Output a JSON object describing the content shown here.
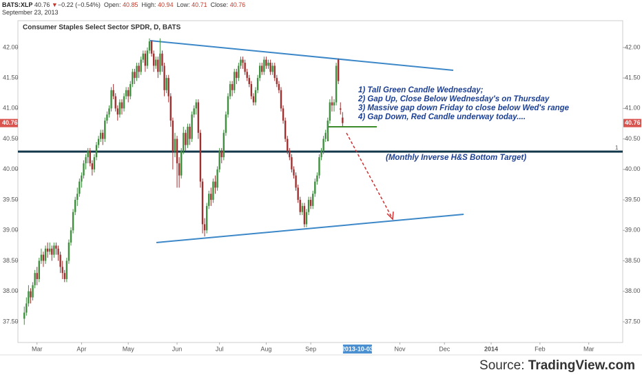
{
  "header": {
    "symbol": "BATS:XLP",
    "change": "−0.22",
    "change_pct": "(−0.54%)",
    "open_label": "Open:",
    "high_label": "High:",
    "low_label": "Low:",
    "close_label": "Close:",
    "date": "September 23, 2013"
  },
  "chart_data": {
    "type": "candlestick",
    "title": "Consumer Staples Select Sector SPDR, D, BATS",
    "up_color": "#3f8f3f",
    "down_color": "#a03030",
    "ylim": [
      37.16,
      42.44
    ],
    "yticks": [
      {
        "value": 37.5,
        "label": "37.50"
      },
      {
        "value": 38,
        "label": "38.00"
      },
      {
        "value": 38.5,
        "label": "38.50"
      },
      {
        "value": 39,
        "label": "39.00"
      },
      {
        "value": 39.5,
        "label": "39.50"
      },
      {
        "value": 40,
        "label": "40.00"
      },
      {
        "value": 40.5,
        "label": "40.50"
      },
      {
        "value": 41,
        "label": "41.00"
      },
      {
        "value": 41.5,
        "label": "41.50"
      },
      {
        "value": 42,
        "label": "42.00"
      }
    ],
    "xlim": [
      -3,
      282
    ],
    "xticks": [
      {
        "value": 6,
        "label": "Mar"
      },
      {
        "value": 27,
        "label": "Apr"
      },
      {
        "value": 49,
        "label": "May"
      },
      {
        "value": 72,
        "label": "Jun"
      },
      {
        "value": 92,
        "label": "Jul"
      },
      {
        "value": 114,
        "label": "Aug"
      },
      {
        "value": 135,
        "label": "Sep"
      },
      {
        "value": 177,
        "label": "Nov"
      },
      {
        "value": 198,
        "label": "Dec"
      },
      {
        "value": 220,
        "label": "2014"
      },
      {
        "value": 243,
        "label": "Feb"
      },
      {
        "value": 266,
        "label": "Mar"
      }
    ],
    "xcursor": {
      "value": 157,
      "label": "2013-10-03"
    },
    "ohlc": [
      [
        37.55,
        37.75,
        37.45,
        37.65
      ],
      [
        37.65,
        37.9,
        37.6,
        37.8
      ],
      [
        37.8,
        38.1,
        37.75,
        38.0
      ],
      [
        38.0,
        38.05,
        37.8,
        37.9
      ],
      [
        37.9,
        38.15,
        37.85,
        38.1
      ],
      [
        38.1,
        38.35,
        38.05,
        38.3
      ],
      [
        38.3,
        38.4,
        38.1,
        38.2
      ],
      [
        38.2,
        38.55,
        38.15,
        38.5
      ],
      [
        38.5,
        38.7,
        38.45,
        38.6
      ],
      [
        38.6,
        38.65,
        38.4,
        38.5
      ],
      [
        38.5,
        38.75,
        38.45,
        38.7
      ],
      [
        38.7,
        38.8,
        38.55,
        38.65
      ],
      [
        38.65,
        38.8,
        38.6,
        38.7
      ],
      [
        38.7,
        38.75,
        38.5,
        38.6
      ],
      [
        38.6,
        38.8,
        38.55,
        38.75
      ],
      [
        38.75,
        38.8,
        38.6,
        38.7
      ],
      [
        38.7,
        38.75,
        38.5,
        38.6
      ],
      [
        38.6,
        38.65,
        38.3,
        38.4
      ],
      [
        38.4,
        38.5,
        38.2,
        38.3
      ],
      [
        38.3,
        38.35,
        38.15,
        38.2
      ],
      [
        38.2,
        38.55,
        38.15,
        38.5
      ],
      [
        38.5,
        38.85,
        38.45,
        38.8
      ],
      [
        38.8,
        39.05,
        38.75,
        39.0
      ],
      [
        39.0,
        39.35,
        38.95,
        39.3
      ],
      [
        39.3,
        39.55,
        39.25,
        39.5
      ],
      [
        39.5,
        39.7,
        39.4,
        39.6
      ],
      [
        39.6,
        39.85,
        39.55,
        39.8
      ],
      [
        39.8,
        39.95,
        39.7,
        39.9
      ],
      [
        39.9,
        40.15,
        39.85,
        40.1
      ],
      [
        40.1,
        40.25,
        40.0,
        40.2
      ],
      [
        40.2,
        40.35,
        40.1,
        40.3
      ],
      [
        40.3,
        40.35,
        40.05,
        40.1
      ],
      [
        40.1,
        40.15,
        39.9,
        40.0
      ],
      [
        40.0,
        40.25,
        39.95,
        40.2
      ],
      [
        40.2,
        40.45,
        40.15,
        40.4
      ],
      [
        40.4,
        40.55,
        40.35,
        40.5
      ],
      [
        40.5,
        40.65,
        40.45,
        40.6
      ],
      [
        40.6,
        40.65,
        40.4,
        40.5
      ],
      [
        40.5,
        40.85,
        40.45,
        40.8
      ],
      [
        40.8,
        40.95,
        40.75,
        40.9
      ],
      [
        40.9,
        41.05,
        40.85,
        41.0
      ],
      [
        41.0,
        41.35,
        40.95,
        41.3
      ],
      [
        41.3,
        41.4,
        41.15,
        41.2
      ],
      [
        41.2,
        41.25,
        40.95,
        41.0
      ],
      [
        41.0,
        41.05,
        40.8,
        40.9
      ],
      [
        40.9,
        41.15,
        40.85,
        41.1
      ],
      [
        41.1,
        41.15,
        40.9,
        41.0
      ],
      [
        41.0,
        41.25,
        40.95,
        41.2
      ],
      [
        41.2,
        41.35,
        41.15,
        41.3
      ],
      [
        41.3,
        41.35,
        41.1,
        41.2
      ],
      [
        41.2,
        41.45,
        41.15,
        41.4
      ],
      [
        41.4,
        41.65,
        41.35,
        41.6
      ],
      [
        41.6,
        41.65,
        41.4,
        41.5
      ],
      [
        41.5,
        41.75,
        41.45,
        41.7
      ],
      [
        41.7,
        41.75,
        41.5,
        41.6
      ],
      [
        41.6,
        41.85,
        41.55,
        41.8
      ],
      [
        41.8,
        41.95,
        41.75,
        41.9
      ],
      [
        41.9,
        41.95,
        41.6,
        41.7
      ],
      [
        41.7,
        42.0,
        41.65,
        41.95
      ],
      [
        41.95,
        42.15,
        41.9,
        42.1
      ],
      [
        42.1,
        42.12,
        41.85,
        41.9
      ],
      [
        41.9,
        41.95,
        41.6,
        41.7
      ],
      [
        41.7,
        41.85,
        41.65,
        41.8
      ],
      [
        41.8,
        41.85,
        41.5,
        41.6
      ],
      [
        41.6,
        42.15,
        41.55,
        41.9
      ],
      [
        41.9,
        41.95,
        41.6,
        41.7
      ],
      [
        41.7,
        41.75,
        41.2,
        41.3
      ],
      [
        41.3,
        41.55,
        41.25,
        41.5
      ],
      [
        41.5,
        41.55,
        41.1,
        41.2
      ],
      [
        41.2,
        41.25,
        40.7,
        40.8
      ],
      [
        40.8,
        40.85,
        40.0,
        40.3
      ],
      [
        40.3,
        40.6,
        40.2,
        40.5
      ],
      [
        40.5,
        40.55,
        39.7,
        40.1
      ],
      [
        40.1,
        40.2,
        39.7,
        39.9
      ],
      [
        39.9,
        40.35,
        39.85,
        40.3
      ],
      [
        40.3,
        40.7,
        40.25,
        40.6
      ],
      [
        40.6,
        40.65,
        40.3,
        40.4
      ],
      [
        40.4,
        40.75,
        40.35,
        40.7
      ],
      [
        40.7,
        40.75,
        40.4,
        40.5
      ],
      [
        40.5,
        40.95,
        40.45,
        40.9
      ],
      [
        40.9,
        41.05,
        40.85,
        41.0
      ],
      [
        41.0,
        41.15,
        40.9,
        41.1
      ],
      [
        41.1,
        41.15,
        40.5,
        40.6
      ],
      [
        40.6,
        40.65,
        39.7,
        39.8
      ],
      [
        39.8,
        39.85,
        38.95,
        39.1
      ],
      [
        39.1,
        39.2,
        38.9,
        39.0
      ],
      [
        39.0,
        39.45,
        38.95,
        39.4
      ],
      [
        39.4,
        39.65,
        39.35,
        39.6
      ],
      [
        39.6,
        39.7,
        39.4,
        39.5
      ],
      [
        39.5,
        39.85,
        39.45,
        39.8
      ],
      [
        39.8,
        39.9,
        39.6,
        39.7
      ],
      [
        39.7,
        40.05,
        39.65,
        40.0
      ],
      [
        40.0,
        40.35,
        39.95,
        40.3
      ],
      [
        40.3,
        40.35,
        40.1,
        40.2
      ],
      [
        40.2,
        40.65,
        40.15,
        40.6
      ],
      [
        40.6,
        40.95,
        40.55,
        40.9
      ],
      [
        40.9,
        41.25,
        40.85,
        41.2
      ],
      [
        41.2,
        41.45,
        41.15,
        41.4
      ],
      [
        41.4,
        41.45,
        41.2,
        41.3
      ],
      [
        41.3,
        41.65,
        41.25,
        41.6
      ],
      [
        41.6,
        41.65,
        41.4,
        41.5
      ],
      [
        41.5,
        41.75,
        41.45,
        41.7
      ],
      [
        41.7,
        41.85,
        41.65,
        41.8
      ],
      [
        41.8,
        41.85,
        41.65,
        41.75
      ],
      [
        41.75,
        41.8,
        41.55,
        41.6
      ],
      [
        41.6,
        41.65,
        41.45,
        41.5
      ],
      [
        41.5,
        41.55,
        41.35,
        41.4
      ],
      [
        41.4,
        41.45,
        41.15,
        41.2
      ],
      [
        41.2,
        41.25,
        41.05,
        41.1
      ],
      [
        41.1,
        41.35,
        41.05,
        41.3
      ],
      [
        41.3,
        41.55,
        41.25,
        41.5
      ],
      [
        41.5,
        41.75,
        41.45,
        41.7
      ],
      [
        41.7,
        41.75,
        41.55,
        41.6
      ],
      [
        41.6,
        41.85,
        41.55,
        41.8
      ],
      [
        41.8,
        41.85,
        41.65,
        41.7
      ],
      [
        41.7,
        41.8,
        41.65,
        41.75
      ],
      [
        41.75,
        41.8,
        41.55,
        41.6
      ],
      [
        41.6,
        41.75,
        41.55,
        41.7
      ],
      [
        41.7,
        41.75,
        41.45,
        41.5
      ],
      [
        41.5,
        41.55,
        41.35,
        41.4
      ],
      [
        41.4,
        41.45,
        41.25,
        41.3
      ],
      [
        41.3,
        41.35,
        40.95,
        41.0
      ],
      [
        41.0,
        41.05,
        40.75,
        40.8
      ],
      [
        40.8,
        40.85,
        40.45,
        40.5
      ],
      [
        40.5,
        40.55,
        40.25,
        40.3
      ],
      [
        40.3,
        40.35,
        40.15,
        40.2
      ],
      [
        40.2,
        40.25,
        39.95,
        40.0
      ],
      [
        40.0,
        40.05,
        39.85,
        39.9
      ],
      [
        39.9,
        39.95,
        39.65,
        39.7
      ],
      [
        39.7,
        39.75,
        39.45,
        39.5
      ],
      [
        39.5,
        39.55,
        39.25,
        39.3
      ],
      [
        39.3,
        39.45,
        39.25,
        39.4
      ],
      [
        39.4,
        39.45,
        39.05,
        39.1
      ],
      [
        39.1,
        39.35,
        39.05,
        39.3
      ],
      [
        39.3,
        39.55,
        39.25,
        39.5
      ],
      [
        39.5,
        39.55,
        39.35,
        39.4
      ],
      [
        39.4,
        39.65,
        39.35,
        39.6
      ],
      [
        39.6,
        39.85,
        39.55,
        39.8
      ],
      [
        39.8,
        39.95,
        39.75,
        39.9
      ],
      [
        39.9,
        40.25,
        39.85,
        40.2
      ],
      [
        40.2,
        40.35,
        40.15,
        40.3
      ],
      [
        40.3,
        40.55,
        40.25,
        40.5
      ],
      [
        40.5,
        40.65,
        40.45,
        40.6
      ],
      [
        40.6,
        40.85,
        40.55,
        40.8
      ],
      [
        40.8,
        41.15,
        40.75,
        41.1
      ],
      [
        41.1,
        41.2,
        40.95,
        41.05
      ],
      [
        41.05,
        41.15,
        40.95,
        41.1
      ],
      [
        41.1,
        41.75,
        41.05,
        41.7
      ],
      [
        41.8,
        41.82,
        41.4,
        41.45
      ],
      [
        41.0,
        41.1,
        40.9,
        40.98
      ],
      [
        40.85,
        40.94,
        40.71,
        40.76
      ]
    ],
    "annotations": [
      "1) Tall Green Candle Wednesday;",
      "2) Gap Up, Close Below Wednesday's on Thursday",
      "3) Massive gap down Friday to close below Wed's range",
      "4) Gap Down, Red Candle underway today...."
    ],
    "target_label": "(Monthly Inverse H&S Bottom Target)",
    "level_marker": "1"
  },
  "source": {
    "prefix": "Source: ",
    "name": "TradingView.com"
  }
}
